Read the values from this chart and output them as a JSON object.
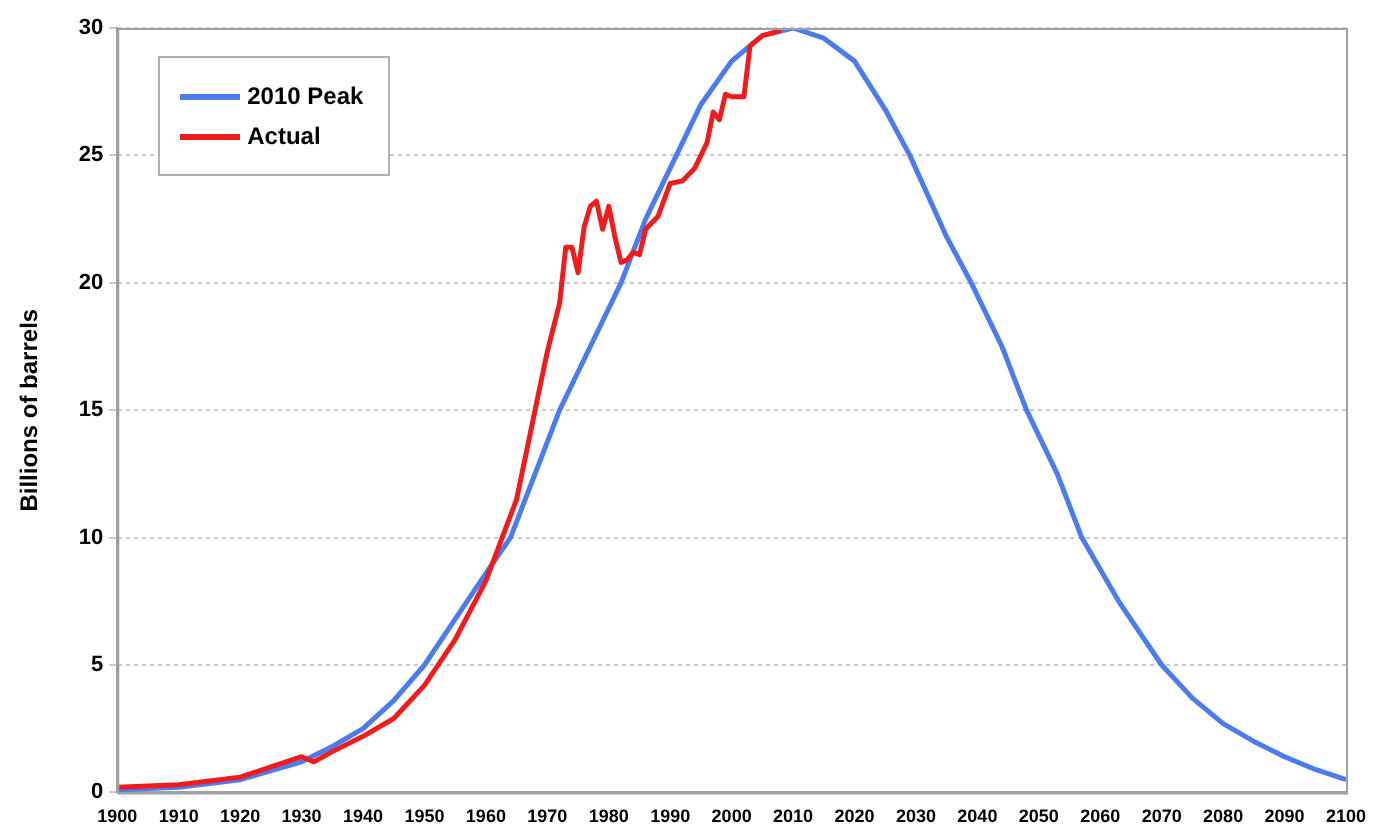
{
  "chart_data": {
    "type": "line",
    "ylabel": "Billions of barrels",
    "xlim": [
      1900,
      2100
    ],
    "xticks": [
      1900,
      1910,
      1920,
      1930,
      1940,
      1950,
      1960,
      1970,
      1980,
      1990,
      2000,
      2010,
      2020,
      2030,
      2040,
      2050,
      2060,
      2070,
      2080,
      2090,
      2100
    ],
    "ylim": [
      0,
      30
    ],
    "yticks": [
      0,
      5,
      10,
      15,
      20,
      25,
      30
    ],
    "grid": "y",
    "legend": "top left",
    "marker": "none",
    "line_style": "solid",
    "series": [
      {
        "name": "2010 Peak",
        "color": "#4a7cf0",
        "x": [
          1900,
          1910,
          1920,
          1930,
          1935,
          1940,
          1945,
          1950,
          1955,
          1960,
          1964,
          1968,
          1972,
          1977,
          1982,
          1986,
          1991,
          1995,
          2000,
          2005,
          2010,
          2015,
          2020,
          2025,
          2029,
          2035,
          2039,
          2044,
          2048,
          2053,
          2057,
          2063,
          2070,
          2075,
          2080,
          2085,
          2090,
          2095,
          2100
        ],
        "values": [
          0.1,
          0.2,
          0.5,
          1.2,
          1.8,
          2.5,
          3.6,
          5,
          6.8,
          8.6,
          10,
          12.5,
          15,
          17.5,
          20,
          22.5,
          25,
          27,
          28.7,
          29.7,
          30,
          29.6,
          28.7,
          26.8,
          25,
          21.8,
          20,
          17.5,
          15,
          12.5,
          10,
          7.5,
          5,
          3.7,
          2.7,
          2,
          1.4,
          0.9,
          0.5
        ]
      },
      {
        "name": "Actual",
        "color": "#f01c1c",
        "x": [
          1900,
          1910,
          1920,
          1925,
          1930,
          1932,
          1935,
          1940,
          1945,
          1950,
          1955,
          1960,
          1965,
          1968,
          1970,
          1972,
          1973,
          1974,
          1975,
          1976,
          1977,
          1978,
          1979,
          1980,
          1981,
          1982,
          1983,
          1984,
          1985,
          1986,
          1988,
          1990,
          1992,
          1994,
          1996,
          1997,
          1998,
          1999,
          2000,
          2002,
          2003,
          2005,
          2008
        ],
        "values": [
          0.2,
          0.3,
          0.6,
          1.0,
          1.4,
          1.2,
          1.6,
          2.2,
          2.9,
          4.2,
          6.0,
          8.3,
          11.5,
          15,
          17.3,
          19.2,
          21.4,
          21.4,
          20.4,
          22.2,
          23,
          23.2,
          22.1,
          23,
          21.8,
          20.8,
          20.9,
          21.2,
          21.1,
          22.1,
          22.6,
          23.9,
          24,
          24.5,
          25.5,
          26.7,
          26.4,
          27.4,
          27.3,
          27.3,
          29.3,
          29.7,
          29.9
        ]
      }
    ]
  }
}
